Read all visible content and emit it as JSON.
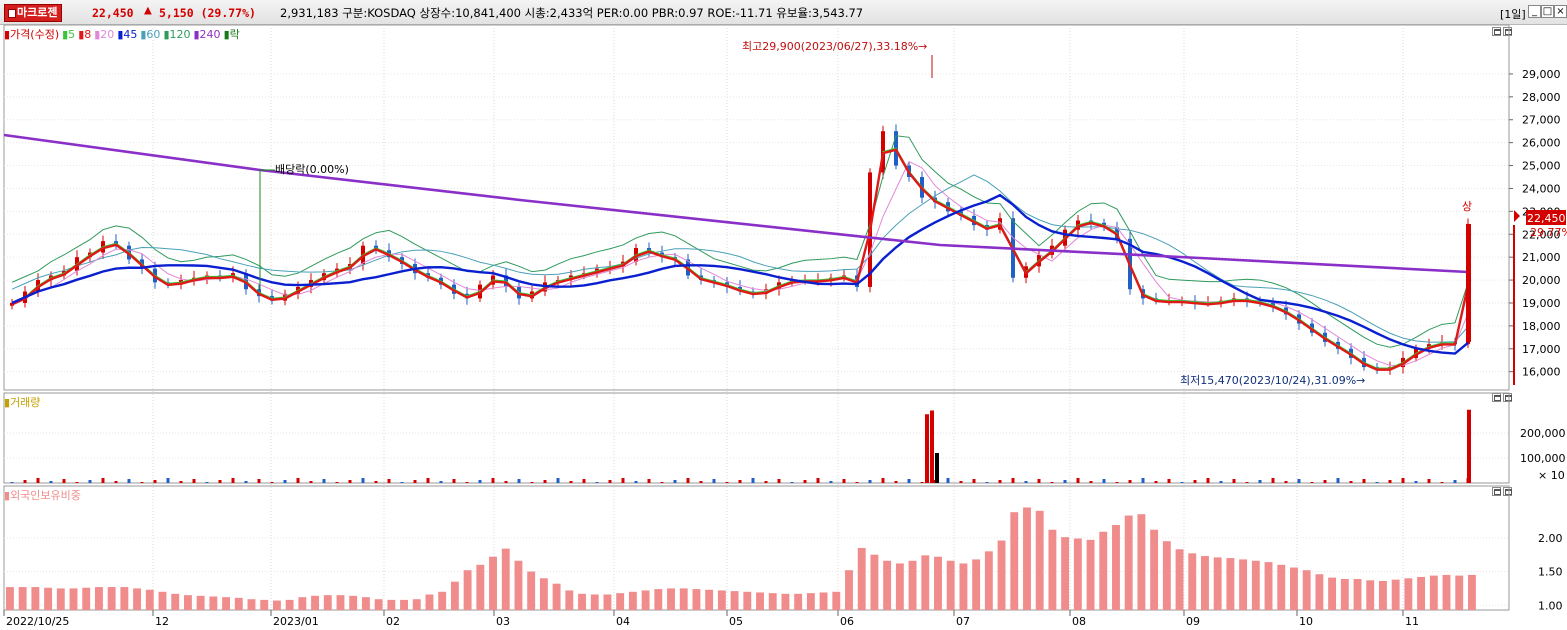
{
  "header": {
    "name": "마크로젠",
    "price": "22,450",
    "change_arrow": "▲",
    "change": "5,150",
    "change_pct": "(29.77%)",
    "info": "2,931,183  구분:KOSDAQ  상장수:10,841,400  시총:2,433억  PER:0.00  PBR:0.97  ROE:-11.71  유보율:3,543.77",
    "period": "[1일]",
    "win_min": "_",
    "win_max": "□",
    "win_close": "×"
  },
  "colors": {
    "up": "#d40000",
    "down": "#1f5fc6",
    "ma5": "#37c837",
    "ma8": "#e01818",
    "ma20": "#e088d8",
    "ma45": "#0a20d0",
    "ma60": "#4aa0b8",
    "ma120": "#2e9a5c",
    "ma240": "#8a2fc8",
    "volume_up": "#d40000",
    "volume_down": "#1f5fc6",
    "foreign": "#f08c8c"
  },
  "price_legend": [
    {
      "label": "가격(수정)",
      "color": "#d40000"
    },
    {
      "label": "5",
      "color": "#37c837"
    },
    {
      "label": "8",
      "color": "#e01818"
    },
    {
      "label": "20",
      "color": "#e088d8"
    },
    {
      "label": "45",
      "color": "#0a20d0"
    },
    {
      "label": "60",
      "color": "#4aa0b8"
    },
    {
      "label": "120",
      "color": "#2e9a5c"
    },
    {
      "label": "240",
      "color": "#8a2fc8"
    },
    {
      "label": "락",
      "color": "#1a7a1a"
    }
  ],
  "volume_legend": "거래량",
  "foreign_legend": "외국인보유비중",
  "annotations": {
    "high": "최고29,900(2023/06/27),33.18%",
    "low": "최저15,470(2023/10/24),31.09%",
    "dividend": "배당락(0.00%)",
    "limit_up": "상",
    "current_price": "22,450",
    "current_pct": "29.77%",
    "volume_scale": "× 10"
  },
  "chart_data": [
    {
      "type": "candlestick",
      "title": "가격(수정)",
      "x_labels": [
        "2022/10/25",
        "12",
        "2023/01",
        "02",
        "03",
        "04",
        "05",
        "06",
        "07",
        "08",
        "09",
        "10",
        "11"
      ],
      "y_ticks": [
        "29,000",
        "28,000",
        "27,000",
        "26,000",
        "25,000",
        "24,000",
        "23,000",
        "22,000",
        "21,000",
        "20,000",
        "19,000",
        "18,000",
        "17,000",
        "16,000"
      ],
      "ylim": [
        15200,
        30700
      ],
      "series": [
        {
          "name": "가격",
          "close": [
            19000,
            19500,
            20000,
            20200,
            20400,
            21000,
            21200,
            21700,
            21500,
            20900,
            20500,
            19900,
            19800,
            20000,
            20100,
            20200,
            20100,
            20300,
            19600,
            19300,
            19100,
            19400,
            19700,
            20000,
            20300,
            20500,
            20700,
            21500,
            21300,
            21000,
            20700,
            20300,
            20100,
            19800,
            19400,
            19200,
            19800,
            20200,
            19700,
            19200,
            19500,
            19900,
            20000,
            20200,
            20300,
            20500,
            20600,
            20800,
            21400,
            21200,
            21000,
            20900,
            20200,
            20000,
            19900,
            19700,
            19500,
            19400,
            19600,
            19900,
            20000,
            20000,
            20000,
            20100,
            20200,
            19700,
            24700,
            26500,
            25000,
            24500,
            23600,
            23400,
            23000,
            22800,
            22400,
            22200,
            22700,
            20100,
            20600,
            21100,
            21500,
            22200,
            22600,
            22500,
            22300,
            21800,
            19600,
            19200,
            19100,
            19100,
            19100,
            19000,
            19000,
            19100,
            19200,
            19100,
            19000,
            18800,
            18500,
            18100,
            17700,
            17300,
            17000,
            16600,
            16200,
            16100,
            16200,
            16600,
            17000,
            17200,
            17300,
            17200,
            22450
          ]
        },
        {
          "name": "5"
        },
        {
          "name": "8"
        },
        {
          "name": "20"
        },
        {
          "name": "45"
        },
        {
          "name": "60"
        },
        {
          "name": "120"
        },
        {
          "name": "240"
        }
      ],
      "high": {
        "value": 29900,
        "date": "2023/06/27"
      },
      "low": {
        "value": 15470,
        "date": "2023/10/24"
      }
    },
    {
      "type": "bar",
      "title": "거래량",
      "y_ticks": [
        "200,000",
        "100,000"
      ],
      "unit": "× 10",
      "spikes": [
        {
          "date": "2023/06/26",
          "value": 275000
        },
        {
          "date": "2023/06/27",
          "value": 290000
        },
        {
          "date": "2023/06/28",
          "value": 120000
        },
        {
          "date": "2023/11/17",
          "value": 293000
        }
      ]
    },
    {
      "type": "bar",
      "title": "외국인보유비중",
      "y_ticks": [
        "2.00",
        "1.50",
        "1.00"
      ],
      "ylim": [
        0.93,
        2.62
      ],
      "values": [
        1.27,
        1.27,
        1.27,
        1.26,
        1.25,
        1.25,
        1.26,
        1.27,
        1.27,
        1.27,
        1.25,
        1.23,
        1.2,
        1.17,
        1.15,
        1.14,
        1.13,
        1.12,
        1.11,
        1.09,
        1.08,
        1.07,
        1.08,
        1.12,
        1.14,
        1.15,
        1.15,
        1.14,
        1.12,
        1.09,
        1.08,
        1.08,
        1.09,
        1.16,
        1.2,
        1.35,
        1.52,
        1.6,
        1.72,
        1.84,
        1.66,
        1.5,
        1.4,
        1.32,
        1.22,
        1.17,
        1.16,
        1.16,
        1.18,
        1.2,
        1.22,
        1.24,
        1.25,
        1.25,
        1.24,
        1.23,
        1.22,
        1.21,
        1.2,
        1.19,
        1.18,
        1.17,
        1.17,
        1.18,
        1.19,
        1.2,
        1.52,
        1.85,
        1.75,
        1.66,
        1.62,
        1.66,
        1.74,
        1.72,
        1.66,
        1.62,
        1.68,
        1.8,
        1.96,
        2.38,
        2.45,
        2.4,
        2.12,
        2.01,
        1.99,
        1.97,
        2.09,
        2.19,
        2.33,
        2.35,
        2.12,
        1.95,
        1.83,
        1.77,
        1.73,
        1.71,
        1.7,
        1.68,
        1.66,
        1.64,
        1.6,
        1.56,
        1.52,
        1.46,
        1.41,
        1.39,
        1.39,
        1.37,
        1.36,
        1.38,
        1.4,
        1.42,
        1.44,
        1.45,
        1.44,
        1.45
      ]
    }
  ]
}
